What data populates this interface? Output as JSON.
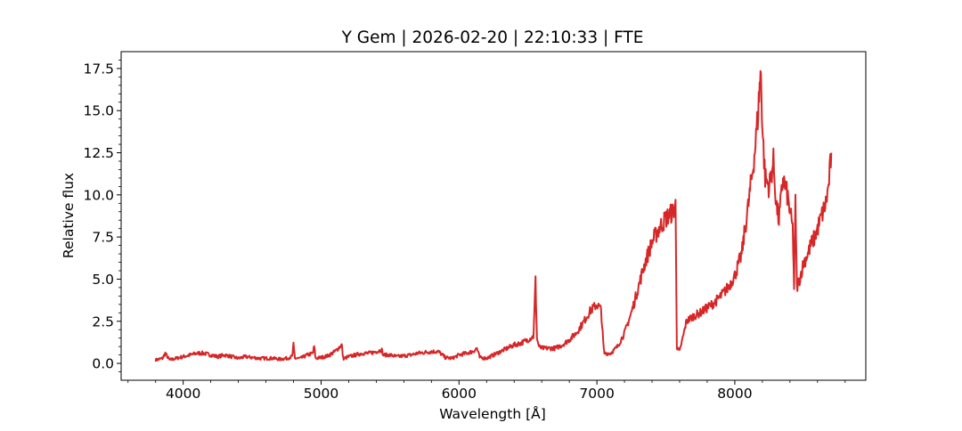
{
  "chart_data": {
    "type": "line",
    "title": "Y Gem | 2026-02-20 | 22:10:33 | FTE",
    "xlabel": "Wavelength [Å]",
    "ylabel": "Relative flux",
    "xlim": [
      3550,
      8950
    ],
    "ylim": [
      -1.0,
      18.5
    ],
    "xticks": [
      4000,
      5000,
      6000,
      7000,
      8000
    ],
    "xtick_labels": [
      "4000",
      "5000",
      "6000",
      "7000",
      "8000"
    ],
    "yticks": [
      0.0,
      2.5,
      5.0,
      7.5,
      10.0,
      12.5,
      15.0,
      17.5
    ],
    "ytick_labels": [
      "0.0",
      "2.5",
      "5.0",
      "7.5",
      "10.0",
      "12.5",
      "15.0",
      "17.5"
    ],
    "grid": false,
    "line_color": "#d62728",
    "series": [
      {
        "x": [
          3800,
          3850,
          3870,
          3900,
          3950,
          4000,
          4050,
          4100,
          4150,
          4200,
          4250,
          4300,
          4350,
          4400,
          4450,
          4500,
          4550,
          4600,
          4650,
          4700,
          4750,
          4790,
          4800,
          4810,
          4850,
          4900,
          4940,
          4950,
          4960,
          5000,
          5050,
          5100,
          5150,
          5160,
          5170,
          5200,
          5250,
          5300,
          5350,
          5400,
          5440,
          5450,
          5500,
          5550,
          5600,
          5650,
          5700,
          5750,
          5800,
          5850,
          5880,
          5900,
          5950,
          6000,
          6050,
          6100,
          6130,
          6150,
          6200,
          6250,
          6300,
          6350,
          6400,
          6450,
          6500,
          6540,
          6555,
          6565,
          6580,
          6600,
          6650,
          6700,
          6750,
          6800,
          6850,
          6900,
          6950,
          7000,
          7030,
          7050,
          7055,
          7100,
          7150,
          7200,
          7250,
          7300,
          7350,
          7400,
          7450,
          7500,
          7550,
          7570,
          7580,
          7590,
          7600,
          7650,
          7700,
          7750,
          7800,
          7850,
          7900,
          7950,
          8000,
          8050,
          8100,
          8130,
          8150,
          8170,
          8180,
          8190,
          8200,
          8220,
          8250,
          8280,
          8300,
          8320,
          8350,
          8380,
          8400,
          8420,
          8430,
          8440,
          8450,
          8470,
          8500,
          8530,
          8550,
          8580,
          8600,
          8620,
          8640,
          8660,
          8680,
          8700
        ],
        "y": [
          0.2,
          0.3,
          0.6,
          0.2,
          0.3,
          0.4,
          0.5,
          0.6,
          0.6,
          0.5,
          0.4,
          0.5,
          0.4,
          0.3,
          0.4,
          0.35,
          0.3,
          0.3,
          0.3,
          0.25,
          0.3,
          0.4,
          1.1,
          0.3,
          0.3,
          0.5,
          0.6,
          1.0,
          0.3,
          0.35,
          0.45,
          0.7,
          1.1,
          0.3,
          0.3,
          0.4,
          0.5,
          0.6,
          0.6,
          0.7,
          0.8,
          0.5,
          0.5,
          0.4,
          0.45,
          0.5,
          0.6,
          0.65,
          0.7,
          0.7,
          0.5,
          0.35,
          0.3,
          0.5,
          0.6,
          0.7,
          0.9,
          0.35,
          0.3,
          0.5,
          0.7,
          0.9,
          1.1,
          1.2,
          1.4,
          1.6,
          4.9,
          1.5,
          1.0,
          0.9,
          0.9,
          0.9,
          1.1,
          1.4,
          1.8,
          2.4,
          3.1,
          3.5,
          3.2,
          0.8,
          0.6,
          0.6,
          1.0,
          1.8,
          3.0,
          4.5,
          6.0,
          7.2,
          8.0,
          8.6,
          9.0,
          9.4,
          1.0,
          0.8,
          0.7,
          2.5,
          2.8,
          3.0,
          3.3,
          3.6,
          4.0,
          4.5,
          5.2,
          6.5,
          9.5,
          11.5,
          13.0,
          15.0,
          16.5,
          17.2,
          14.0,
          11.0,
          10.5,
          12.0,
          9.5,
          8.5,
          11.0,
          10.0,
          9.0,
          8.0,
          4.5,
          9.5,
          4.5,
          5.0,
          6.0,
          6.5,
          7.0,
          7.5,
          8.0,
          8.5,
          9.0,
          9.5,
          10.5,
          12.5
        ]
      }
    ]
  }
}
